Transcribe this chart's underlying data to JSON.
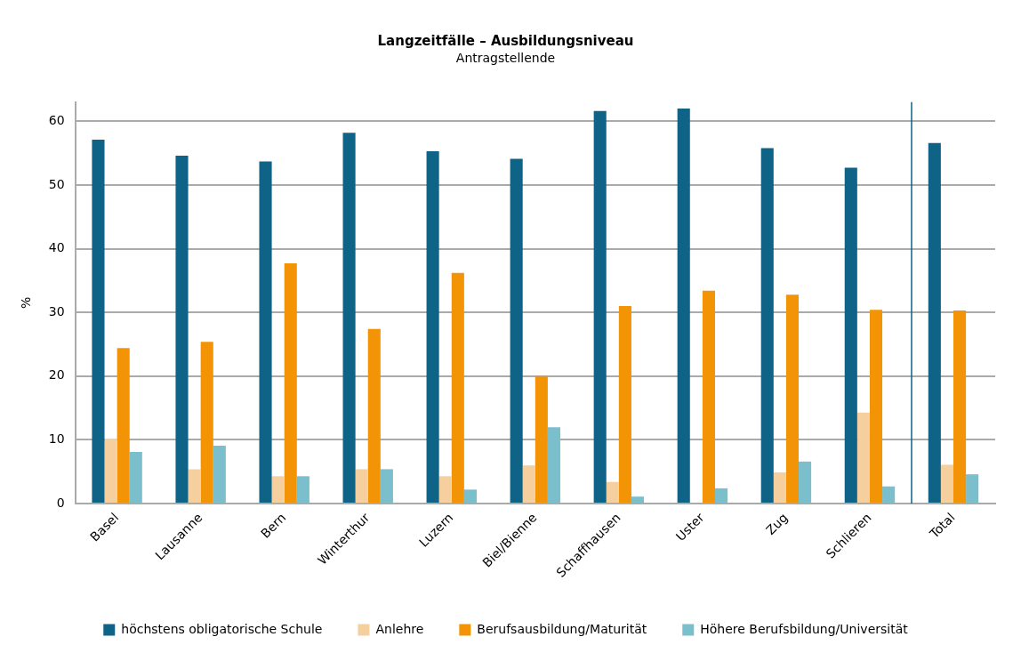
{
  "chart_data": {
    "type": "bar",
    "title": "Langzeitfälle – Ausbildungsniveau",
    "subtitle": "Antragstellende",
    "ylabel": "%",
    "categories": [
      "Basel",
      "Lausanne",
      "Bern",
      "Winterthur",
      "Luzern",
      "Biel/Bienne",
      "Schaffhausen",
      "Uster",
      "Zug",
      "Schlieren",
      "Total"
    ],
    "series": [
      {
        "name": "höchstens obligatorische Schule",
        "color": "#0e6387",
        "values": [
          57.1,
          54.6,
          53.7,
          58.2,
          55.3,
          54.1,
          61.6,
          62.0,
          55.8,
          52.7,
          56.6
        ]
      },
      {
        "name": "Anlehre",
        "color": "#f6cf9e",
        "values": [
          10.2,
          5.4,
          4.3,
          5.4,
          4.3,
          6.0,
          3.4,
          0,
          4.9,
          14.3,
          6.1
        ]
      },
      {
        "name": "Berufsausbildung/Maturität",
        "color": "#f39406",
        "values": [
          24.4,
          25.4,
          37.7,
          27.4,
          36.2,
          20.0,
          31.0,
          33.4,
          32.8,
          30.4,
          30.3
        ]
      },
      {
        "name": "Höhere Berufsbildung/Universität",
        "color": "#7cbfcc",
        "values": [
          8.1,
          9.1,
          4.3,
          5.4,
          2.2,
          12.0,
          1.1,
          2.4,
          6.6,
          2.7,
          4.6
        ]
      }
    ],
    "ylim": [
      0,
      63
    ],
    "yticks": [
      0,
      10,
      20,
      30,
      40,
      50,
      60
    ],
    "grid": "y",
    "legend": "bottom",
    "ref_lines": [
      {
        "axis": "x",
        "value": "Total",
        "color": "#0e6387"
      }
    ]
  }
}
